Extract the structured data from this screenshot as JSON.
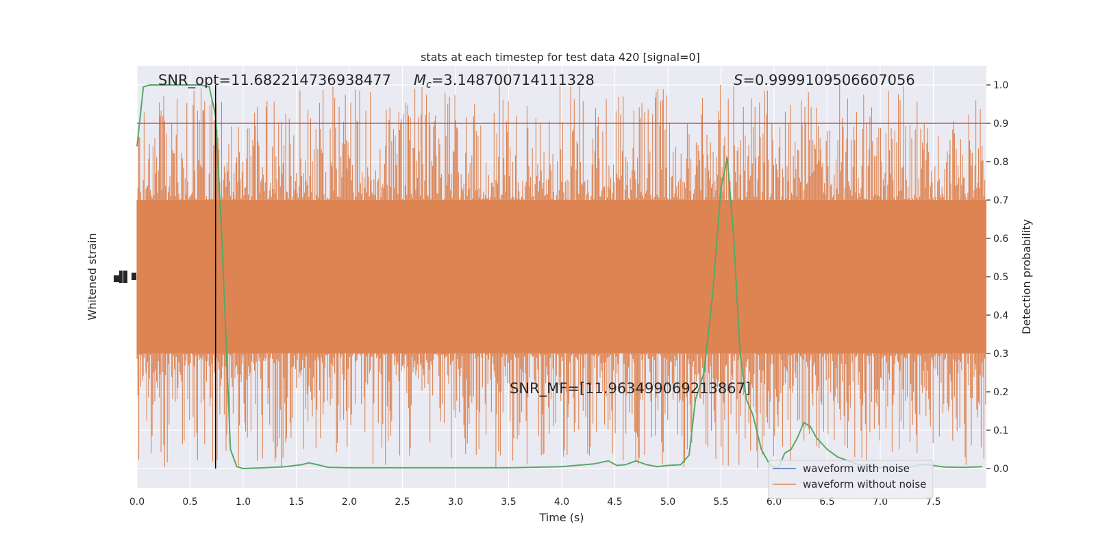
{
  "chart_data": {
    "type": "line",
    "title": "stats at each timestep for test data 420 [signal=0]",
    "xlabel": "Time (s)",
    "ylabel_left": "Whitened strain",
    "ylabel_right": "Detection probability",
    "xlim": [
      0,
      8
    ],
    "ylim_right": [
      -0.05,
      1.05
    ],
    "x_ticks": [
      0.0,
      0.5,
      1.0,
      1.5,
      2.0,
      2.5,
      3.0,
      3.5,
      4.0,
      4.5,
      5.0,
      5.5,
      6.0,
      6.5,
      7.0,
      7.5
    ],
    "x_tick_labels": [
      "0.0",
      "0.5",
      "1.0",
      "1.5",
      "2.0",
      "2.5",
      "3.0",
      "3.5",
      "4.0",
      "4.5",
      "5.0",
      "5.5",
      "6.0",
      "6.5",
      "7.0",
      "7.5"
    ],
    "y_right_ticks": [
      0.0,
      0.1,
      0.2,
      0.3,
      0.4,
      0.5,
      0.6,
      0.7,
      0.8,
      0.9,
      1.0
    ],
    "y_right_tick_labels": [
      "0.0",
      "0.1",
      "0.2",
      "0.3",
      "0.4",
      "0.5",
      "0.6",
      "0.7",
      "0.8",
      "0.9",
      "1.0"
    ],
    "grid": true,
    "legend_position": "bottom-right",
    "threshold": 0.9,
    "marker_time": 0.74,
    "annotations": {
      "snr_opt": "SNR_opt=11.682214736938477",
      "mc_symbol": "M",
      "mc_sub": "c",
      "mc_value": "=3.148700714111328",
      "s_symbol": "S",
      "s_value": "=0.9999109506607056",
      "snr_mf": "SNR_MF=[11.963499069213867]"
    },
    "series": [
      {
        "name": "waveform with noise",
        "color": "#4c72b0",
        "note_visible": false
      },
      {
        "name": "waveform without noise",
        "color": "#dd8452",
        "band_center": 0.5,
        "band_core_halfwidth": 0.2,
        "spike_extent_max": 0.5
      },
      {
        "name": "detection probability",
        "color": "#55a868",
        "x": [
          0.0,
          0.06,
          0.12,
          0.2,
          0.3,
          0.4,
          0.5,
          0.6,
          0.68,
          0.74,
          0.8,
          0.88,
          0.94,
          1.0,
          1.2,
          1.4,
          1.55,
          1.62,
          1.7,
          1.8,
          2.0,
          2.2,
          2.5,
          3.0,
          3.5,
          4.0,
          4.3,
          4.44,
          4.52,
          4.6,
          4.7,
          4.8,
          4.9,
          5.0,
          5.12,
          5.2,
          5.26,
          5.34,
          5.42,
          5.5,
          5.56,
          5.62,
          5.68,
          5.74,
          5.8,
          5.88,
          5.96,
          6.04,
          6.1,
          6.16,
          6.22,
          6.28,
          6.34,
          6.4,
          6.5,
          6.6,
          6.7,
          6.8,
          6.9,
          7.0,
          7.2,
          7.3,
          7.36,
          7.45,
          7.6,
          7.8,
          7.96
        ],
        "y": [
          0.84,
          0.995,
          1.0,
          1.0,
          1.0,
          1.0,
          1.0,
          1.0,
          0.995,
          0.92,
          0.6,
          0.05,
          0.005,
          0.0,
          0.002,
          0.005,
          0.01,
          0.015,
          0.01,
          0.003,
          0.002,
          0.002,
          0.002,
          0.002,
          0.002,
          0.005,
          0.012,
          0.02,
          0.008,
          0.01,
          0.02,
          0.01,
          0.005,
          0.008,
          0.01,
          0.035,
          0.18,
          0.25,
          0.45,
          0.73,
          0.81,
          0.6,
          0.3,
          0.18,
          0.14,
          0.05,
          0.01,
          0.0,
          0.04,
          0.05,
          0.08,
          0.12,
          0.11,
          0.08,
          0.05,
          0.03,
          0.02,
          0.01,
          0.005,
          0.003,
          0.004,
          0.005,
          0.01,
          0.01,
          0.004,
          0.003,
          0.005
        ]
      }
    ]
  }
}
